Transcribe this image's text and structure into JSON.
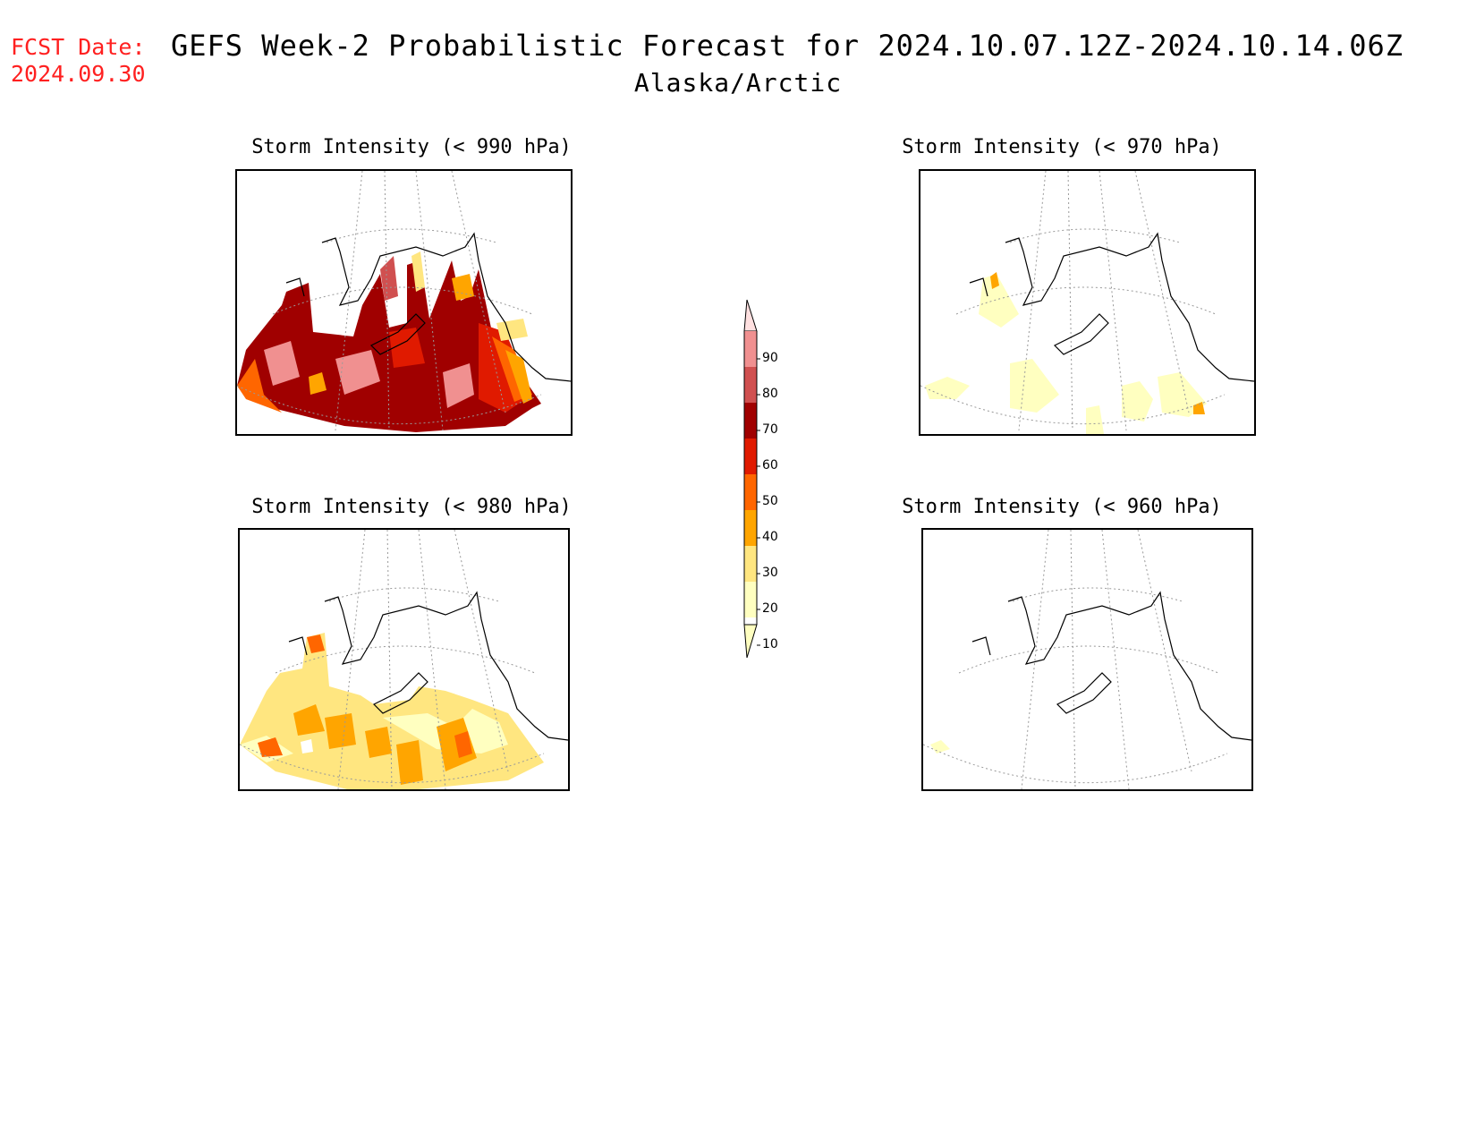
{
  "header": {
    "fcst_label": "FCST Date:",
    "fcst_date": "2024.09.30",
    "title": "GEFS Week-2 Probabilistic Forecast for 2024.10.07.12Z-2024.10.14.06Z",
    "subtitle": "Alaska/Arctic"
  },
  "panels": [
    {
      "id": "p990",
      "title": "Storm Intensity (< 990 hPa)",
      "intensity": "high"
    },
    {
      "id": "p970",
      "title": "Storm Intensity (< 970 hPa)",
      "intensity": "low"
    },
    {
      "id": "p980",
      "title": "Storm Intensity (< 980 hPa)",
      "intensity": "medium"
    },
    {
      "id": "p960",
      "title": "Storm Intensity (< 960 hPa)",
      "intensity": "none"
    }
  ],
  "colorbar": {
    "levels": [
      "10",
      "20",
      "30",
      "40",
      "50",
      "60",
      "70",
      "80",
      "90"
    ],
    "colors": [
      "#ffffc0",
      "#ffe680",
      "#ffa500",
      "#ff6600",
      "#e01a00",
      "#a00000",
      "#d05050",
      "#f09090",
      "#ffe0e0"
    ]
  }
}
